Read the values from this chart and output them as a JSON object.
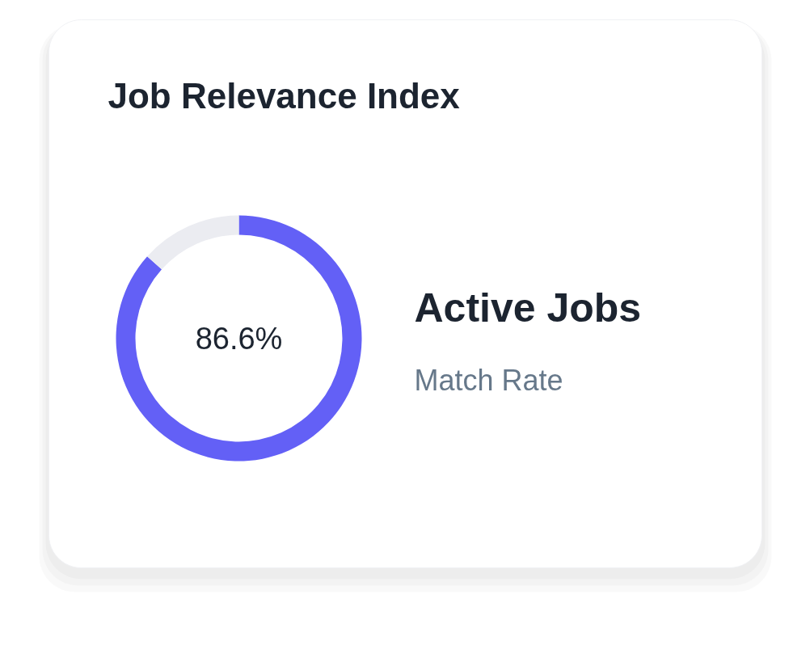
{
  "chart_data": {
    "type": "donut",
    "title": "Job Relevance Index",
    "categories": [
      null,
      null
    ],
    "values": [
      86.6,
      13.4
    ],
    "colors": [
      "#6360f6",
      "#ebecf1"
    ],
    "value_labels": [
      "86.6%",
      null
    ],
    "annotations": [
      "Active Jobs",
      "Match Rate"
    ]
  }
}
